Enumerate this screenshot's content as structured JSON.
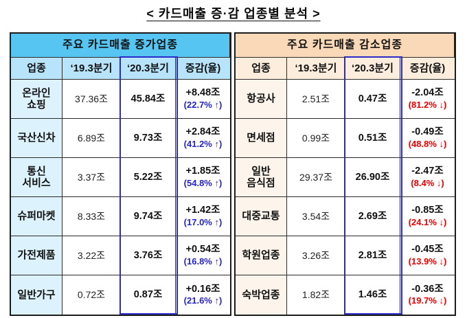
{
  "title": "<  카드매출 증·감 업종별 분석  >",
  "colors": {
    "increase_header_bg": "#57C5F2",
    "increase_subheader_bg": "#B7E4FA",
    "increase_category_bg": "#DCF2FC",
    "decrease_header_bg": "#F9D9B8",
    "decrease_subheader_bg": "#FCEDDD",
    "decrease_category_bg": "#FDF5EC",
    "highlight_column_border": "#2A2AC8",
    "increase_rate_text": "#2424CE",
    "decrease_rate_text": "#EC0000"
  },
  "chart_data": {
    "type": "table",
    "tables": [
      {
        "title": "주요 카드매출 증가업종",
        "columns": [
          "업종",
          "‘19.3분기",
          "‘20.3분기",
          "증감(율)"
        ],
        "rows": [
          [
            "온라인 쇼핑",
            "37.36조",
            "45.84조",
            "+8.48조 (22.7% ↑)"
          ],
          [
            "국산신차",
            "6.89조",
            "9.73조",
            "+2.84조 (41.2% ↑)"
          ],
          [
            "통신 서비스",
            "3.37조",
            "5.22조",
            "+1.85조 (54.8% ↑)"
          ],
          [
            "슈퍼마켓",
            "8.33조",
            "9.74조",
            "+1.42조 (17.0% ↑)"
          ],
          [
            "가전제품",
            "3.22조",
            "3.76조",
            "+0.54조 (16.8% ↑)"
          ],
          [
            "일반가구",
            "0.72조",
            "0.87조",
            "+0.16조 (21.6% ↑)"
          ]
        ]
      },
      {
        "title": "주요 카드매출 감소업종",
        "columns": [
          "업종",
          "‘19.3분기",
          "‘20.3분기",
          "증감(율)"
        ],
        "rows": [
          [
            "항공사",
            "2.51조",
            "0.47조",
            "-2.04조 (81.2% ↓)"
          ],
          [
            "면세점",
            "0.99조",
            "0.51조",
            "-0.49조 (48.8% ↓)"
          ],
          [
            "일반 음식점",
            "29.37조",
            "26.90조",
            "-2.47조 (8.4% ↓)"
          ],
          [
            "대중교통",
            "3.54조",
            "2.69조",
            "-0.85조 (24.1% ↓)"
          ],
          [
            "학원업종",
            "3.26조",
            "2.81조",
            "-0.45조 (13.9% ↓)"
          ],
          [
            "숙박업종",
            "1.82조",
            "1.46조",
            "-0.36조 (19.7% ↓)"
          ]
        ]
      }
    ]
  },
  "tables": [
    {
      "title": "주요 카드매출 증가업종",
      "headers": {
        "category": "업종",
        "q19": "‘19.3분기",
        "q20": "‘20.3분기",
        "delta": "증감(율)"
      },
      "rows": [
        {
          "category": "온라인\n쇼핑",
          "q19": "37.36조",
          "q20": "45.84조",
          "delta": "+8.48조",
          "rate": "(22.7% ↑)"
        },
        {
          "category": "국산신차",
          "q19": "6.89조",
          "q20": "9.73조",
          "delta": "+2.84조",
          "rate": "(41.2% ↑)"
        },
        {
          "category": "통신\n서비스",
          "q19": "3.37조",
          "q20": "5.22조",
          "delta": "+1.85조",
          "rate": "(54.8% ↑)"
        },
        {
          "category": "슈퍼마켓",
          "q19": "8.33조",
          "q20": "9.74조",
          "delta": "+1.42조",
          "rate": "(17.0% ↑)"
        },
        {
          "category": "가전제품",
          "q19": "3.22조",
          "q20": "3.76조",
          "delta": "+0.54조",
          "rate": "(16.8% ↑)"
        },
        {
          "category": "일반가구",
          "q19": "0.72조",
          "q20": "0.87조",
          "delta": "+0.16조",
          "rate": "(21.6% ↑)"
        }
      ]
    },
    {
      "title": "주요 카드매출 감소업종",
      "headers": {
        "category": "업종",
        "q19": "‘19.3분기",
        "q20": "‘20.3분기",
        "delta": "증감(율)"
      },
      "rows": [
        {
          "category": "항공사",
          "q19": "2.51조",
          "q20": "0.47조",
          "delta": "-2.04조",
          "rate": "(81.2% ↓)"
        },
        {
          "category": "면세점",
          "q19": "0.99조",
          "q20": "0.51조",
          "delta": "-0.49조",
          "rate": "(48.8% ↓)"
        },
        {
          "category": "일반\n음식점",
          "q19": "29.37조",
          "q20": "26.90조",
          "delta": "-2.47조",
          "rate": "(8.4% ↓)"
        },
        {
          "category": "대중교통",
          "q19": "3.54조",
          "q20": "2.69조",
          "delta": "-0.85조",
          "rate": "(24.1% ↓)"
        },
        {
          "category": "학원업종",
          "q19": "3.26조",
          "q20": "2.81조",
          "delta": "-0.45조",
          "rate": "(13.9% ↓)"
        },
        {
          "category": "숙박업종",
          "q19": "1.82조",
          "q20": "1.46조",
          "delta": "-0.36조",
          "rate": "(19.7% ↓)"
        }
      ]
    }
  ]
}
